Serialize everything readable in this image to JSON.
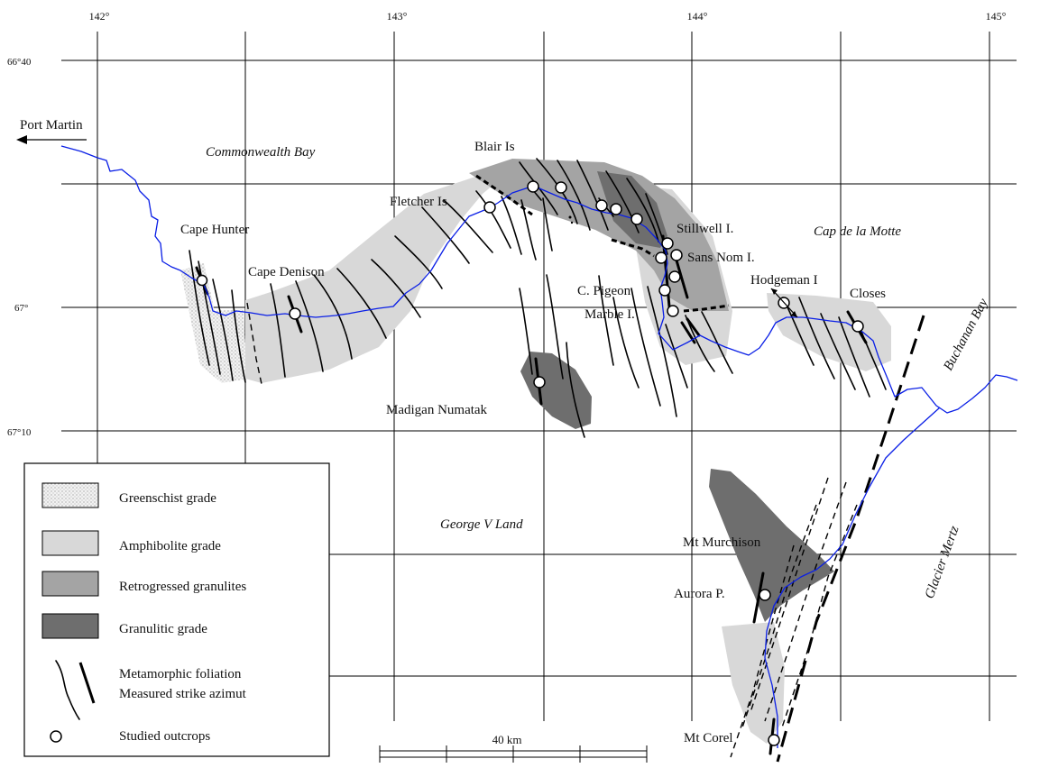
{
  "grid": {
    "longitude_labels": [
      "142°",
      "143°",
      "144°",
      "145°"
    ],
    "latitude_labels": [
      "66°40",
      "67°",
      "67°10"
    ]
  },
  "places": {
    "port_martin": "Port Martin",
    "commonwealth_bay": "Commonwealth Bay",
    "blair_is": "Blair Is",
    "fletcher_is": "Fletcher Is",
    "cape_hunter": "Cape Hunter",
    "cape_denison": "Cape Denison",
    "stillwell": "Stillwell I.",
    "sans_nom": "Sans Nom I.",
    "cap_de_la_motte": "Cap de la Motte",
    "hodgeman": "Hodgeman I",
    "c_pigeon": "C. Pigeon",
    "marble": "Marble I.",
    "closes": "Closes",
    "buchanan_bay": "Buchanan Bay",
    "madigan_numatak": "Madigan Numatak",
    "george_v_land": "George V Land",
    "glacier_mertz": "Glacier Mertz",
    "mt_murchison": "Mt Murchison",
    "aurora_p": "Aurora P.",
    "mt_corel": "Mt Corel"
  },
  "legend": {
    "items": [
      {
        "label": "Greenschist grade",
        "color": "#ececec",
        "pattern": "stipple"
      },
      {
        "label": "Amphibolite grade",
        "color": "#d8d8d8"
      },
      {
        "label": "Retrogressed granulites",
        "color": "#a4a4a4"
      },
      {
        "label": "Granulitic grade",
        "color": "#6e6e6e"
      }
    ],
    "foliation_label": "Metamorphic foliation",
    "strike_label": "Measured strike azimut",
    "outcrops_label": "Studied outcrops"
  },
  "scale_bar": {
    "label": "40 km"
  },
  "colors": {
    "coastline": "#0a1fe6",
    "grid": "#000000"
  }
}
